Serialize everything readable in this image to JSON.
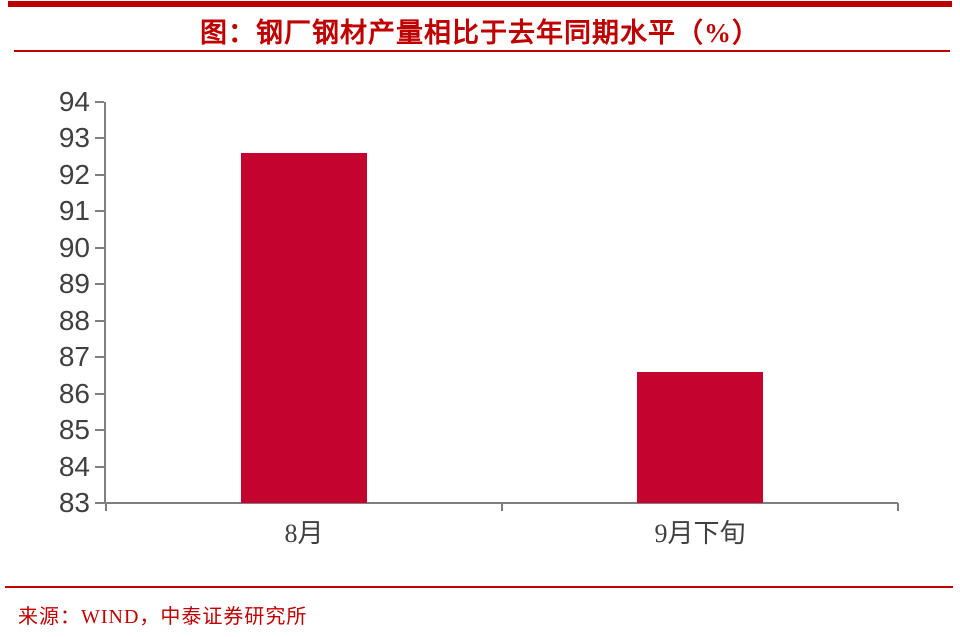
{
  "page": {
    "source_note": "来源：WIND，中泰证券研究所"
  },
  "colors": {
    "accent_red": "#C00000",
    "bar_red": "#C4032E",
    "axis_gray": "#7F7F7F",
    "tick_label_gray": "#404040"
  },
  "chart_data": {
    "type": "bar",
    "title": "图：钢厂钢材产量相比于去年同期水平（%）",
    "categories": [
      "8月",
      "9月下旬"
    ],
    "values": [
      92.6,
      86.6
    ],
    "xlabel": "",
    "ylabel": "",
    "ylim": [
      83,
      94
    ],
    "ytick_step": 1,
    "ytick_labels": [
      "83",
      "84",
      "85",
      "86",
      "87",
      "88",
      "89",
      "90",
      "91",
      "92",
      "93",
      "94"
    ],
    "grid": false,
    "legend": null
  }
}
